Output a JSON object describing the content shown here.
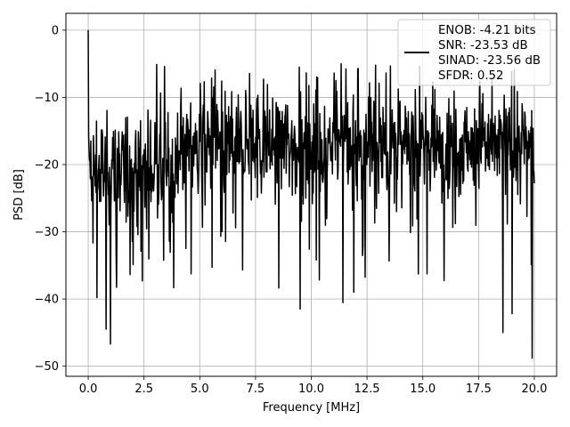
{
  "chart_data": {
    "type": "line",
    "xlabel": "Frequency [MHz]",
    "ylabel": "PSD [dB]",
    "xlim": [
      -1.0,
      21.0
    ],
    "ylim": [
      -51.5,
      2.5
    ],
    "xticks": [
      0.0,
      2.5,
      5.0,
      7.5,
      10.0,
      12.5,
      15.0,
      17.5,
      20.0
    ],
    "xtick_labels": [
      "0.0",
      "2.5",
      "5.0",
      "7.5",
      "10.0",
      "12.5",
      "15.0",
      "17.5",
      "20.0"
    ],
    "yticks": [
      0,
      -10,
      -20,
      -30,
      -40,
      -50
    ],
    "ytick_labels": [
      "0",
      "−10",
      "−20",
      "−30",
      "−40",
      "−50"
    ],
    "grid": true,
    "legend_position": "top-right",
    "series": [
      {
        "color": "#000000",
        "x_start": 0.0,
        "x_end": 20.0,
        "approx_points": 1024,
        "peak_dB": 0.0,
        "min_dB": -48.8,
        "noise_band_dB": [
          -28,
          -5
        ]
      }
    ],
    "legend_lines": [
      "ENOB: -4.21 bits",
      "SNR: -23.53 dB",
      "SINAD: -23.56 dB",
      "SFDR: 0.52"
    ],
    "notable_points": [
      {
        "x": 0.0,
        "y": 0.0
      },
      {
        "x": 0.4,
        "y": -39.8
      },
      {
        "x": 0.8,
        "y": -44.5
      },
      {
        "x": 1.0,
        "y": -46.7
      },
      {
        "x": 9.5,
        "y": -41.5
      },
      {
        "x": 19.9,
        "y": -48.8
      },
      {
        "x": 18.6,
        "y": -45.0
      },
      {
        "x": 11.9,
        "y": -39.0
      }
    ]
  }
}
